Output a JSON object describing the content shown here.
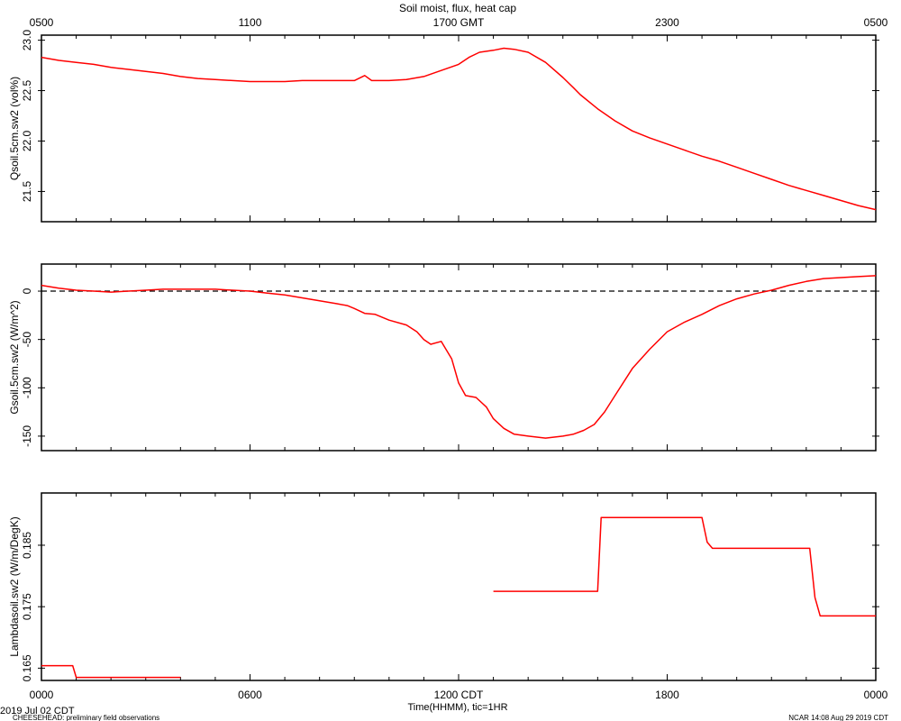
{
  "header": {
    "title": "Soil moist, flux, heat cap",
    "top_ticks": [
      "0500",
      "1100",
      "1700 GMT",
      "2300",
      "0500"
    ]
  },
  "footer": {
    "bottom_ticks": [
      "0000",
      "0600",
      "1200 CDT",
      "1800",
      "0000"
    ],
    "date": "2019 Jul 02 CDT",
    "xlabel": "Time(HHMM), tic=1HR",
    "project": "CHEESEHEAD: preliminary field observations",
    "stamp": "NCAR 14:08 Aug 29 2019 CDT"
  },
  "colors": {
    "series": "#ff0000",
    "axis": "#000000"
  },
  "chart_data": [
    {
      "type": "line",
      "ylabel": "Qsoil.5cm.sw2 (vol%)",
      "ylim": [
        21.2,
        23.05
      ],
      "yticks": [
        21.5,
        22.0,
        22.5,
        23.0
      ],
      "ytick_labels": [
        "21.5",
        "22.0",
        "22.5",
        "23.0"
      ],
      "xlim": [
        0,
        24
      ],
      "x_unit": "hours CDT",
      "series": [
        {
          "x": [
            0,
            0.5,
            1,
            1.5,
            2,
            2.5,
            3,
            3.5,
            4,
            4.5,
            5,
            5.5,
            6,
            6.5,
            7,
            7.5,
            8,
            8.5,
            9,
            9.3,
            9.5,
            10,
            10.5,
            11,
            11.5,
            12,
            12.3,
            12.6,
            13,
            13.3,
            13.6,
            14,
            14.5,
            15,
            15.3,
            15.5,
            16,
            16.5,
            17,
            17.5,
            18,
            18.5,
            19,
            19.5,
            20,
            20.5,
            21,
            21.5,
            22,
            22.5,
            23,
            23.5,
            24
          ],
          "values": [
            22.83,
            22.8,
            22.78,
            22.76,
            22.73,
            22.71,
            22.69,
            22.67,
            22.64,
            22.62,
            22.61,
            22.6,
            22.59,
            22.59,
            22.59,
            22.6,
            22.6,
            22.6,
            22.6,
            22.65,
            22.6,
            22.6,
            22.61,
            22.64,
            22.7,
            22.76,
            22.83,
            22.88,
            22.9,
            22.92,
            22.91,
            22.88,
            22.78,
            22.63,
            22.53,
            22.46,
            22.32,
            22.2,
            22.1,
            22.03,
            21.97,
            21.91,
            21.85,
            21.8,
            21.74,
            21.68,
            21.62,
            21.56,
            21.51,
            21.46,
            21.41,
            21.36,
            21.32
          ]
        }
      ]
    },
    {
      "type": "line",
      "ylabel": "Gsoil.5cm.sw2 (W/m^2)",
      "ylim": [
        -165,
        28
      ],
      "yticks": [
        -150,
        -100,
        -50,
        0
      ],
      "ytick_labels": [
        "-150",
        "-100",
        "-50",
        "0"
      ],
      "zero_line": true,
      "xlim": [
        0,
        24
      ],
      "x_unit": "hours CDT",
      "series": [
        {
          "x": [
            0,
            0.5,
            1,
            1.5,
            2,
            2.5,
            3,
            3.5,
            4,
            4.5,
            5,
            5.5,
            6,
            6.5,
            7,
            7.5,
            8,
            8.5,
            8.8,
            9,
            9.3,
            9.6,
            10,
            10.5,
            10.8,
            11,
            11.2,
            11.5,
            11.8,
            12,
            12.2,
            12.5,
            12.8,
            13,
            13.3,
            13.6,
            14,
            14.5,
            15,
            15.3,
            15.6,
            15.9,
            16.2,
            16.5,
            17,
            17.5,
            18,
            18.5,
            19,
            19.5,
            20,
            20.5,
            21,
            21.5,
            22,
            22.5,
            23,
            23.5,
            24
          ],
          "values": [
            6,
            3,
            1,
            0,
            -1,
            0,
            1,
            2,
            2,
            2,
            2,
            1,
            0,
            -2,
            -4,
            -7,
            -10,
            -13,
            -15,
            -18,
            -23,
            -24,
            -30,
            -35,
            -42,
            -50,
            -55,
            -52,
            -70,
            -95,
            -108,
            -110,
            -120,
            -132,
            -142,
            -148,
            -150,
            -152,
            -150,
            -148,
            -144,
            -138,
            -125,
            -108,
            -80,
            -60,
            -42,
            -32,
            -24,
            -15,
            -8,
            -3,
            1,
            6,
            10,
            13,
            14,
            15,
            16
          ]
        }
      ]
    },
    {
      "type": "line",
      "ylabel": "Lambdasoil.sw2 (W/m/DegK)",
      "ylim": [
        0.163,
        0.1935
      ],
      "yticks": [
        0.165,
        0.175,
        0.185
      ],
      "ytick_labels": [
        "0.165",
        "0.175",
        "0.185"
      ],
      "xlim": [
        0,
        24
      ],
      "x_unit": "hours CDT",
      "series": [
        {
          "x": [
            0,
            0.9,
            1.0,
            4.0
          ],
          "values": [
            0.1654,
            0.1654,
            0.1635,
            0.1635
          ]
        },
        {
          "x": [
            13.0,
            16.0,
            16.1,
            19.0,
            19.15,
            19.3,
            22.1,
            22.25,
            22.4,
            24
          ],
          "values": [
            0.1775,
            0.1775,
            0.1895,
            0.1895,
            0.1855,
            0.1845,
            0.1845,
            0.1765,
            0.1735,
            0.1735
          ]
        }
      ]
    }
  ]
}
